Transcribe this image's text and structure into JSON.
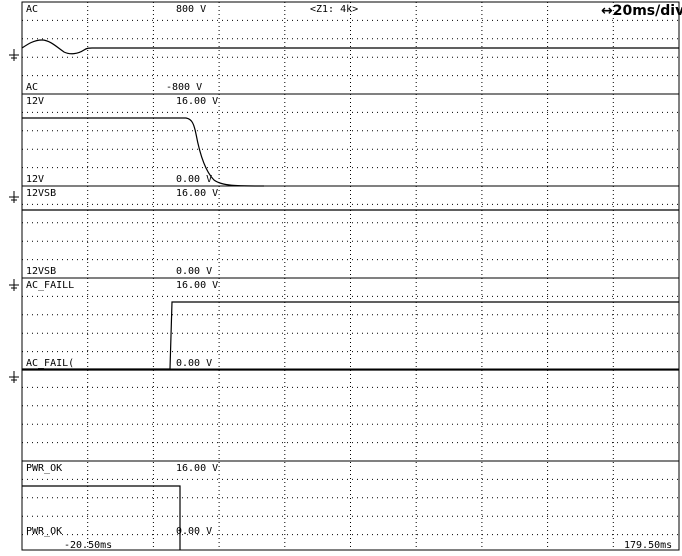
{
  "header": {
    "zoom": "<Z1: 4k>",
    "timebase": "↔20ms/div"
  },
  "footer": {
    "start_time": "-20.50ms",
    "end_time": "179.50ms"
  },
  "icons": {
    "ground_marker": "ground-marker-icon"
  },
  "colors": {
    "background": "#ffffff",
    "trace": "#000000",
    "grid_dots": "#000000"
  },
  "channels": [
    {
      "name_top": "AC",
      "top_value": "800 V",
      "name_bottom": "AC",
      "bottom_value": "-800 V",
      "waveform": "sine-burst-then-flat"
    },
    {
      "name_top": "12V",
      "top_value": "16.00 V",
      "name_bottom": "12V",
      "bottom_value": "0.00 V",
      "waveform": "high-then-decay-to-zero"
    },
    {
      "name_top": "12VSB",
      "top_value": "16.00 V",
      "name_bottom": "12VSB",
      "bottom_value": "0.00 V",
      "waveform": "constant-high"
    },
    {
      "name_top": "AC_FAILL",
      "top_value": "16.00 V",
      "name_bottom": "AC_FAIL(",
      "bottom_value": "0.00 V",
      "waveform": "low-then-step-high"
    },
    {
      "name_top": "",
      "top_value": "",
      "name_bottom": "",
      "bottom_value": "",
      "waveform": "none"
    },
    {
      "name_top": "PWR_OK",
      "top_value": "16.00 V",
      "name_bottom": "PWR_OK",
      "bottom_value": "0.00 V",
      "waveform": "high-then-drop"
    }
  ]
}
